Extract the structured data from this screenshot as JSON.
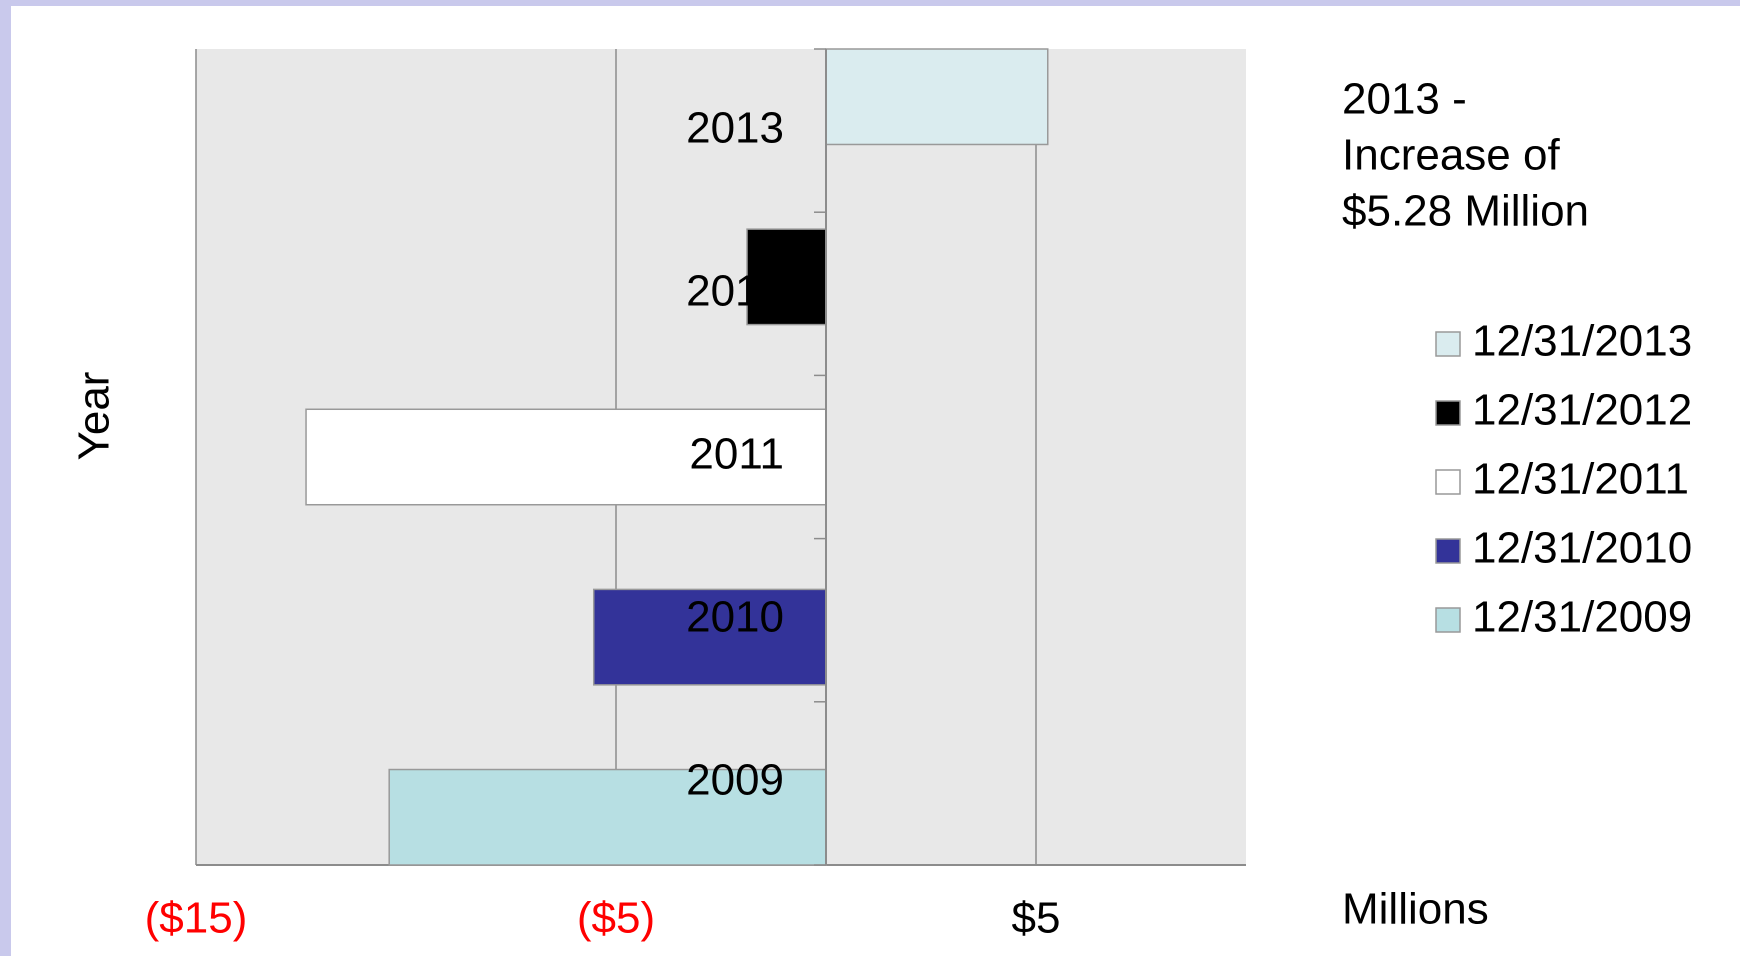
{
  "chart_data": {
    "type": "bar",
    "orientation": "horizontal",
    "y_label": "Year",
    "x_label": "Millions",
    "annotation": [
      "2013 -",
      "Increase of",
      "$5.28 Million"
    ],
    "categories": [
      "2013",
      "2012",
      "2011",
      "2010",
      "2009"
    ],
    "series": [
      {
        "name": "12/31/2013",
        "color": "#daecef",
        "values": [
          5.28,
          null,
          null,
          null,
          null
        ]
      },
      {
        "name": "12/31/2012",
        "color": "#000000",
        "values": [
          null,
          -1.88,
          null,
          null,
          null
        ]
      },
      {
        "name": "12/31/2011",
        "color": "#ffffff",
        "values": [
          null,
          null,
          -12.38,
          null,
          null
        ]
      },
      {
        "name": "12/31/2010",
        "color": "#333399",
        "values": [
          null,
          null,
          null,
          -5.53,
          null
        ]
      },
      {
        "name": "12/31/2009",
        "color": "#b7dfe3",
        "values": [
          null,
          null,
          null,
          null,
          -10.4
        ]
      }
    ],
    "xlim": [
      -15,
      10
    ],
    "xticks": [
      {
        "value": -15,
        "label": "($15)"
      },
      {
        "value": -5,
        "label": "($5)"
      },
      {
        "value": 5,
        "label": "$5"
      }
    ],
    "grid": true
  }
}
